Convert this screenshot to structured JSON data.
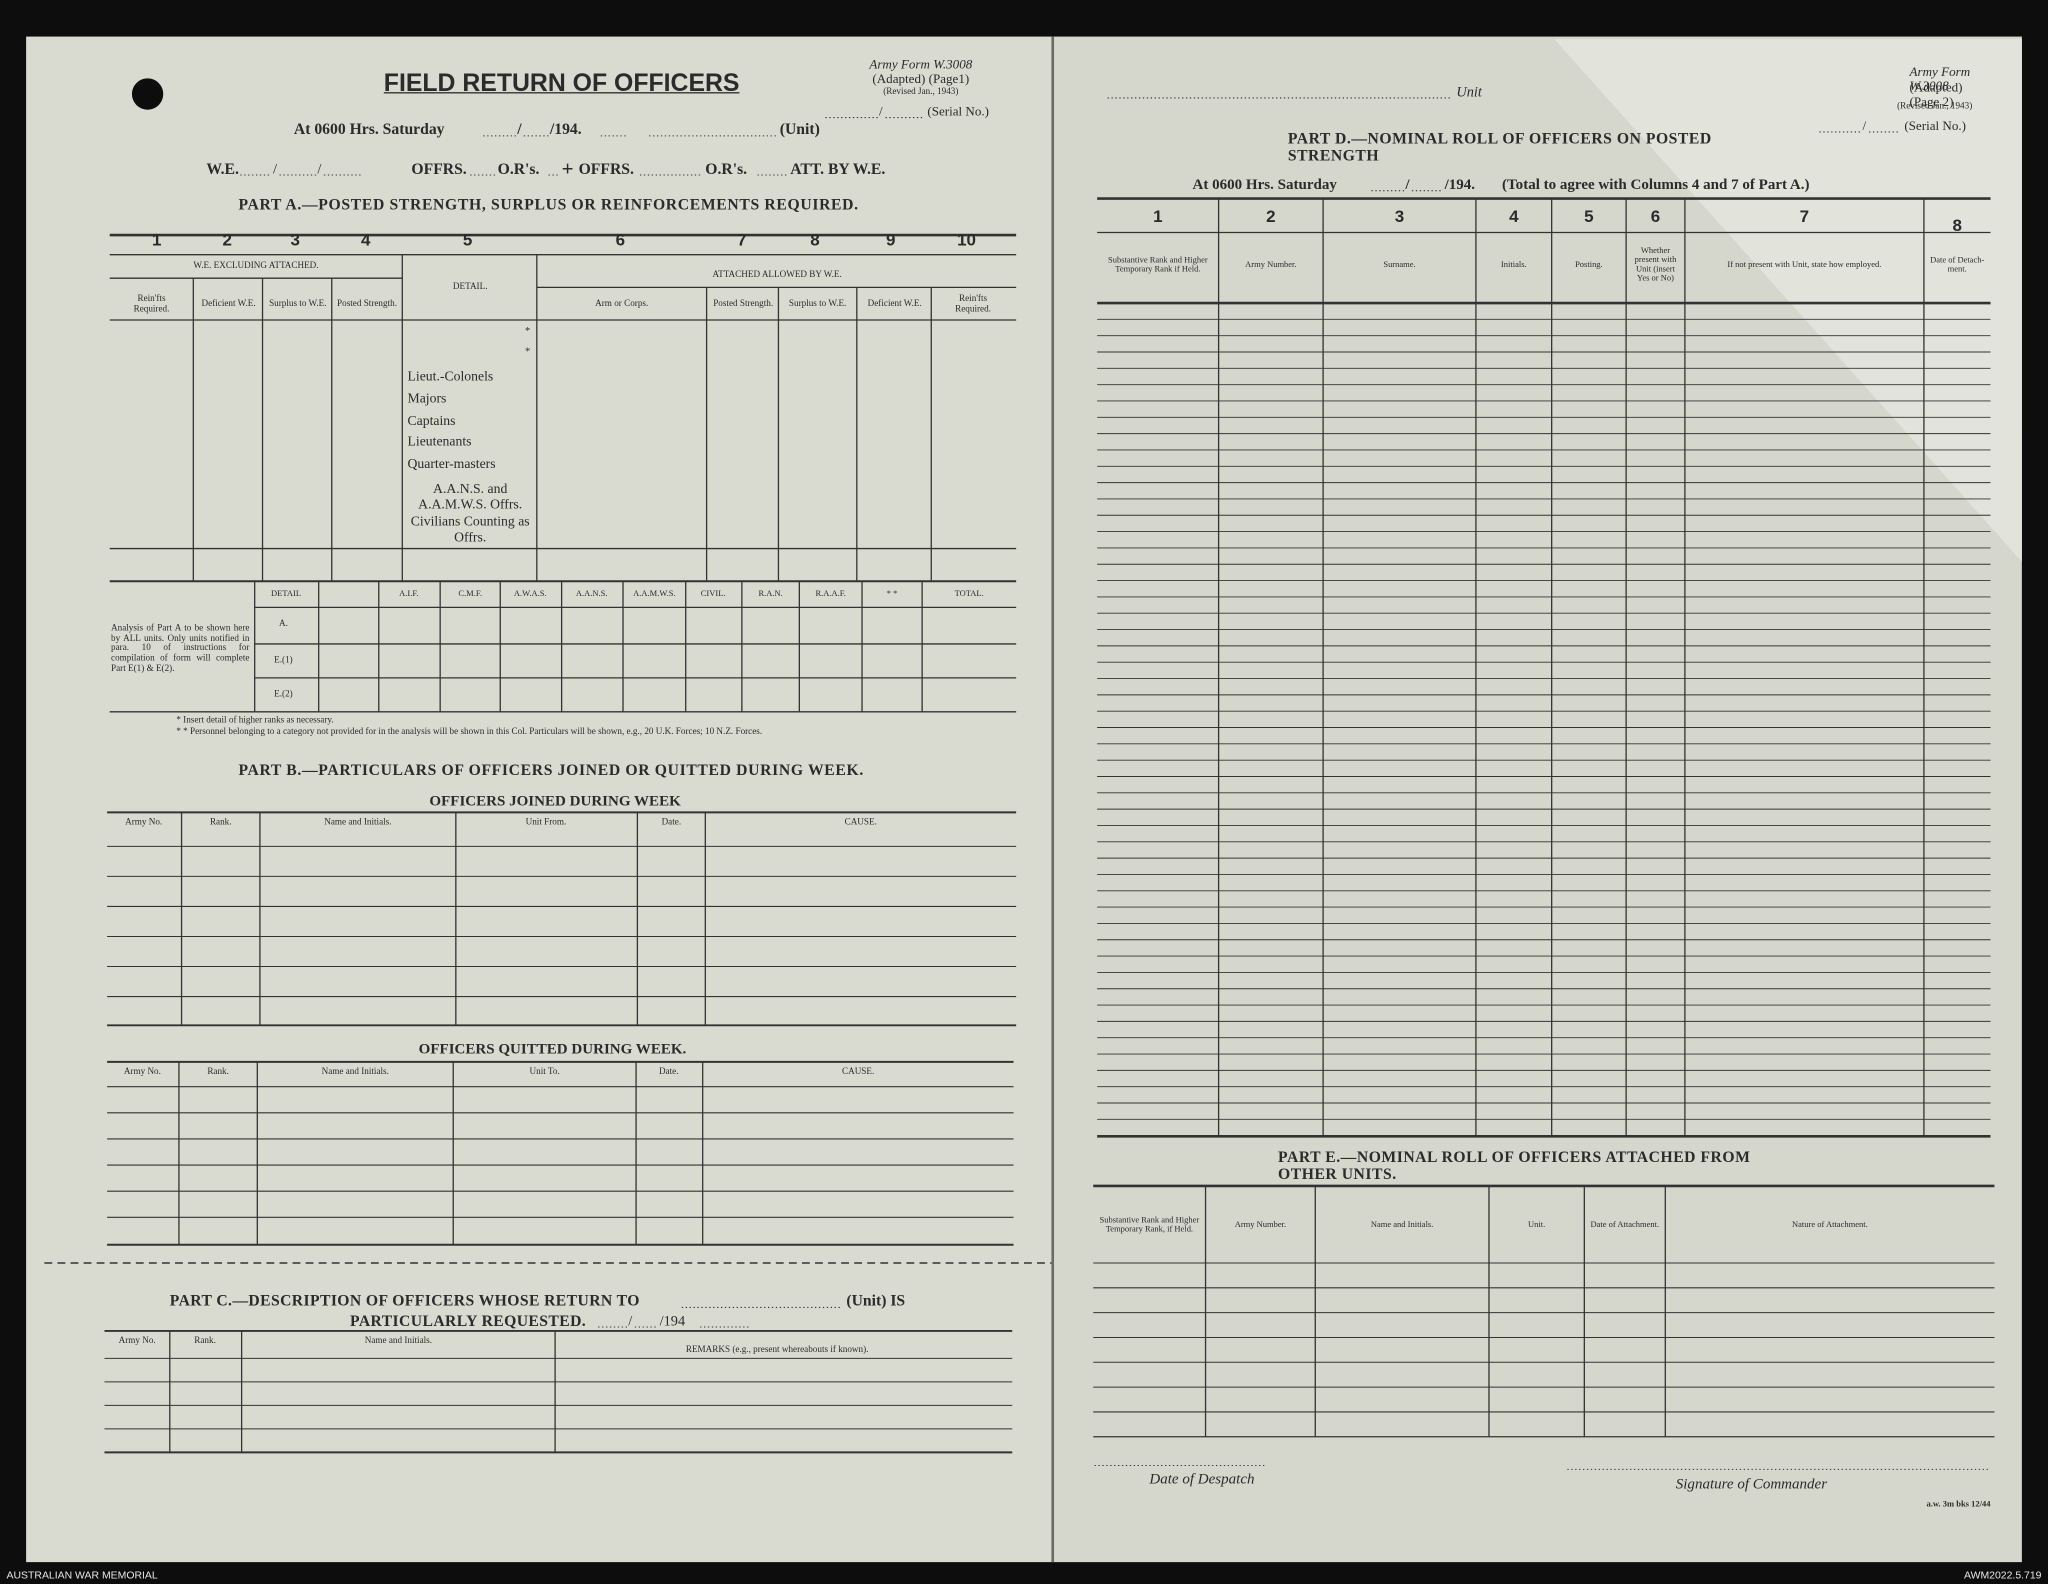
{
  "left_page": {
    "title": "FIELD RETURN OF OFFICERS",
    "form": {
      "name": "Army Form W.3008",
      "adapted": "(Adapted) (Page1)",
      "revised": "(Revised Jan., 1943)",
      "serial": "(Serial No.)"
    },
    "sep": "/",
    "date_line": {
      "at": "At 0600 Hrs. Saturday",
      "year": "/194.",
      "unit": "(Unit)"
    },
    "we_line": [
      "W.E.",
      "OFFRS.",
      "O.R's.",
      "+",
      "OFFRS.",
      "O.R's.",
      "ATT. BY W.E."
    ],
    "part_a": {
      "title": "PART A.—POSTED STRENGTH, SURPLUS OR REINFORCEMENTS REQUIRED.",
      "col_numbers": [
        1,
        2,
        3,
        4,
        5,
        6,
        7,
        8,
        9,
        10
      ],
      "groups": [
        "W.E. EXCLUDING ATTACHED.",
        "DETAIL.",
        "ATTACHED ALLOWED BY W.E."
      ],
      "subheaders": [
        "Rein'fts Required.",
        "Deficient W.E.",
        "Surplus to W.E.",
        "Posted Strength.",
        "Arm or Corps.",
        "Posted Strength.",
        "Surplus to W.E.",
        "Deficient W.E.",
        "Rein'fts Required."
      ],
      "details": [
        "Lieut.-Colonels",
        "Majors",
        "Captains",
        "Lieutenants",
        "Quarter-masters",
        "A.A.N.S. and\nA.A.M.W.S. Offrs.",
        "Civilians Counting\nas Offrs."
      ],
      "asterisks": [
        "*",
        "*"
      ]
    },
    "analysis": {
      "note": "Analysis of Part A to be shown here by ALL units. Only units notified in para. 10 of instructions for compilation of form will complete Part E(1) & E(2).",
      "headers": [
        "DETAIL",
        "A.I.F.",
        "C.M.F.",
        "A.W.A.S.",
        "A.A.N.S.",
        "A.A.M.W.S.",
        "CIVIL.",
        "R.A.N.",
        "R.A.A.F.",
        "* *",
        "TOTAL."
      ],
      "rows": [
        "A.",
        "E.(1)",
        "E.(2)"
      ],
      "footnotes": [
        "* Insert detail of higher ranks as necessary.",
        "* * Personnel belonging to a category not provided for in the analysis will be shown in this Col.  Particulars will be shown, e.g., 20 U.K. Forces; 10 N.Z. Forces."
      ]
    },
    "part_b": {
      "title": "PART B.—PARTICULARS OF OFFICERS JOINED OR QUITTED DURING WEEK.",
      "joined": {
        "title": "OFFICERS JOINED DURING WEEK",
        "headers": [
          "Army No.",
          "Rank.",
          "Name and Initials.",
          "Unit From.",
          "Date.",
          "CAUSE."
        ]
      },
      "quitted": {
        "title": "OFFICERS QUITTED DURING WEEK.",
        "headers": [
          "Army No.",
          "Rank.",
          "Name and Initials.",
          "Unit To.",
          "Date.",
          "CAUSE."
        ]
      }
    },
    "part_c": {
      "line1": "PART C.—DESCRIPTION OF OFFICERS WHOSE RETURN TO",
      "unit": "(Unit) IS",
      "line2": "PARTICULARLY REQUESTED.",
      "year": "/194",
      "headers": [
        "Army No.",
        "Rank.",
        "Name and Initials.",
        "REMARKS (e.g., present whereabouts if known)."
      ]
    }
  },
  "right_page": {
    "unit": "Unit",
    "form": {
      "name": "Army Form W.3008",
      "adapted": "(Adapted) (Page 2)",
      "revised": "(Revised Jan., 1943)",
      "serial": "(Serial No.)"
    },
    "sep": "/",
    "part_d": {
      "title": "PART D.—NOMINAL ROLL OF OFFICERS ON POSTED STRENGTH",
      "at": "At 0600 Hrs. Saturday",
      "year": "/194.",
      "note": "(Total to agree with Columns 4 and 7 of Part A.)",
      "col_numbers": [
        1,
        2,
        3,
        4,
        5,
        6,
        7,
        8
      ],
      "headers": [
        "Substantive Rank and Higher Temporary Rank if Held.",
        "Army Number.",
        "Surname.",
        "Initials.",
        "Posting.",
        "Whether present with Unit (insert Yes or No)",
        "If not present with Unit, state how employed.",
        "Date of Detach-ment."
      ]
    },
    "part_e": {
      "title": "PART E.—NOMINAL ROLL OF OFFICERS ATTACHED FROM OTHER UNITS.",
      "headers": [
        "Substantive Rank and Higher Temporary Rank, if Held.",
        "Army Number.",
        "Name and Initials.",
        "Unit.",
        "Date of Attachment.",
        "Nature of Attachment."
      ]
    },
    "despatch": "Date of Despatch",
    "signature": "Signature of Commander",
    "print_code": "a.w. 3m bks 12/44"
  },
  "footer": {
    "left": "AUSTRALIAN WAR MEMORIAL",
    "right": "AWM2022.5.719"
  }
}
